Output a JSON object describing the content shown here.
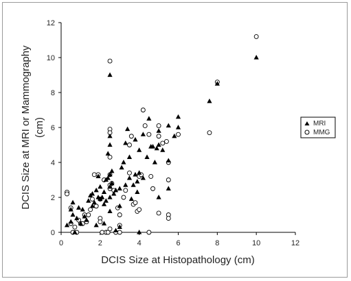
{
  "chart_data": {
    "type": "scatter",
    "xlabel": "DCIS Size at Histopathology (cm)",
    "ylabel_lines": [
      "DCIS Size at MRI or Mammography",
      "(cm)"
    ],
    "xlim": [
      0,
      12
    ],
    "ylim": [
      0,
      12
    ],
    "xticks": [
      0,
      2,
      4,
      6,
      8,
      10,
      12
    ],
    "yticks": [
      0,
      2,
      4,
      6,
      8,
      10,
      12
    ],
    "grid": false,
    "legend_position": "right",
    "series": [
      {
        "name": "MRI",
        "marker": "filled-triangle",
        "color": "#000000",
        "points": [
          [
            0.3,
            0.4
          ],
          [
            0.5,
            0.6
          ],
          [
            0.5,
            1.3
          ],
          [
            0.6,
            1.7
          ],
          [
            0.6,
            1.0
          ],
          [
            0.7,
            0.0
          ],
          [
            0.8,
            0.8
          ],
          [
            0.9,
            1.4
          ],
          [
            1.0,
            0.5
          ],
          [
            1.1,
            1.3
          ],
          [
            1.2,
            0.9
          ],
          [
            1.3,
            0.7
          ],
          [
            1.4,
            1.8
          ],
          [
            1.5,
            2.1
          ],
          [
            1.6,
            2.2
          ],
          [
            1.6,
            1.5
          ],
          [
            1.7,
            1.7
          ],
          [
            1.8,
            2.4
          ],
          [
            1.8,
            0.4
          ],
          [
            1.9,
            2.0
          ],
          [
            1.9,
            3.2
          ],
          [
            2.0,
            1.9
          ],
          [
            2.0,
            2.6
          ],
          [
            2.1,
            2.0
          ],
          [
            2.2,
            0.5
          ],
          [
            2.2,
            1.6
          ],
          [
            2.2,
            2.3
          ],
          [
            2.3,
            1.8
          ],
          [
            2.3,
            3.0
          ],
          [
            2.4,
            4.5
          ],
          [
            2.4,
            3.1
          ],
          [
            2.5,
            9.0
          ],
          [
            2.5,
            2.6
          ],
          [
            2.5,
            5.0
          ],
          [
            2.5,
            5.5
          ],
          [
            2.5,
            2.0
          ],
          [
            2.5,
            1.2
          ],
          [
            2.5,
            3.3
          ],
          [
            2.6,
            3.5
          ],
          [
            2.6,
            2.8
          ],
          [
            2.7,
            2.2
          ],
          [
            2.8,
            0.1
          ],
          [
            2.8,
            2.4
          ],
          [
            3.0,
            0.3
          ],
          [
            3.0,
            1.5
          ],
          [
            3.0,
            2.5
          ],
          [
            3.1,
            3.7
          ],
          [
            3.2,
            4.0
          ],
          [
            3.3,
            2.7
          ],
          [
            3.3,
            5.1
          ],
          [
            3.4,
            5.9
          ],
          [
            3.5,
            3.1
          ],
          [
            3.5,
            4.3
          ],
          [
            3.6,
            1.9
          ],
          [
            3.7,
            2.7
          ],
          [
            3.8,
            5.3
          ],
          [
            3.8,
            3.3
          ],
          [
            3.9,
            2.3
          ],
          [
            3.9,
            2.9
          ],
          [
            4.0,
            4.7
          ],
          [
            4.0,
            3.4
          ],
          [
            4.0,
            0.0
          ],
          [
            4.2,
            5.6
          ],
          [
            4.2,
            3.1
          ],
          [
            4.4,
            4.3
          ],
          [
            4.5,
            6.5
          ],
          [
            4.6,
            4.9
          ],
          [
            4.7,
            4.9
          ],
          [
            4.8,
            4.0
          ],
          [
            4.9,
            4.8
          ],
          [
            5.0,
            5.8
          ],
          [
            5.0,
            5.0
          ],
          [
            5.0,
            2.0
          ],
          [
            5.2,
            4.7
          ],
          [
            5.5,
            2.5
          ],
          [
            5.5,
            4.1
          ],
          [
            5.5,
            6.1
          ],
          [
            5.8,
            5.5
          ],
          [
            6.0,
            6.6
          ],
          [
            6.0,
            6.0
          ],
          [
            7.6,
            7.5
          ],
          [
            8.0,
            8.5
          ],
          [
            10.0,
            10.0
          ]
        ]
      },
      {
        "name": "MMG",
        "marker": "open-circle",
        "color": "#000000",
        "points": [
          [
            0.3,
            2.3
          ],
          [
            0.3,
            2.2
          ],
          [
            0.5,
            1.4
          ],
          [
            0.5,
            0.5
          ],
          [
            0.6,
            0.0
          ],
          [
            0.7,
            0.3
          ],
          [
            0.8,
            0.0
          ],
          [
            0.9,
            0.7
          ],
          [
            1.0,
            0.5
          ],
          [
            1.1,
            0.5
          ],
          [
            1.2,
            1.0
          ],
          [
            1.3,
            0.6
          ],
          [
            1.4,
            1.0
          ],
          [
            1.5,
            1.3
          ],
          [
            1.6,
            1.9
          ],
          [
            1.7,
            3.3
          ],
          [
            1.8,
            1.5
          ],
          [
            1.9,
            3.3
          ],
          [
            2.0,
            1.9
          ],
          [
            2.0,
            0.8
          ],
          [
            2.0,
            0.6
          ],
          [
            2.1,
            0.0
          ],
          [
            2.2,
            3.0
          ],
          [
            2.3,
            0.0
          ],
          [
            2.4,
            0.0
          ],
          [
            2.5,
            9.8
          ],
          [
            2.5,
            5.9
          ],
          [
            2.5,
            5.7
          ],
          [
            2.5,
            4.3
          ],
          [
            2.5,
            3.3
          ],
          [
            2.5,
            2.7
          ],
          [
            2.5,
            2.5
          ],
          [
            2.5,
            0.2
          ],
          [
            2.6,
            2.8
          ],
          [
            2.7,
            2.4
          ],
          [
            2.8,
            0.0
          ],
          [
            2.9,
            1.4
          ],
          [
            3.0,
            1.0
          ],
          [
            3.0,
            0.4
          ],
          [
            3.0,
            0.0
          ],
          [
            3.2,
            2.0
          ],
          [
            3.3,
            2.4
          ],
          [
            3.5,
            5.0
          ],
          [
            3.5,
            3.4
          ],
          [
            3.6,
            5.5
          ],
          [
            3.7,
            1.6
          ],
          [
            3.8,
            1.7
          ],
          [
            3.9,
            1.2
          ],
          [
            4.0,
            1.3
          ],
          [
            4.0,
            3.2
          ],
          [
            4.1,
            3.3
          ],
          [
            4.2,
            7.0
          ],
          [
            4.3,
            6.1
          ],
          [
            4.5,
            0.0
          ],
          [
            4.5,
            5.6
          ],
          [
            4.6,
            3.2
          ],
          [
            4.7,
            2.5
          ],
          [
            5.0,
            6.1
          ],
          [
            5.0,
            5.5
          ],
          [
            5.0,
            1.1
          ],
          [
            5.2,
            5.1
          ],
          [
            5.4,
            5.2
          ],
          [
            5.5,
            4.0
          ],
          [
            5.5,
            3.0
          ],
          [
            5.5,
            1.0
          ],
          [
            5.5,
            0.8
          ],
          [
            6.0,
            5.6
          ],
          [
            7.6,
            5.7
          ],
          [
            8.0,
            8.6
          ],
          [
            10.0,
            11.2
          ]
        ]
      }
    ]
  }
}
